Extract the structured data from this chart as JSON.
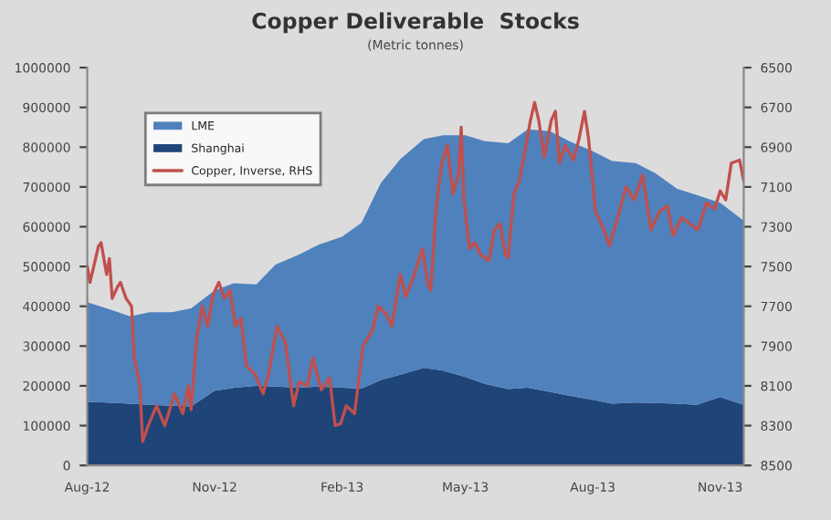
{
  "chart_data": {
    "type": "area",
    "title": "Copper Deliverable  Stocks",
    "subtitle": "(Metric tonnes)",
    "stacked": true,
    "legend": "top left",
    "grid": false,
    "x": [
      "2012-08-01",
      "2012-08-15",
      "2012-09-01",
      "2012-09-15",
      "2012-10-01",
      "2012-10-15",
      "2012-11-01",
      "2012-11-15",
      "2012-12-01",
      "2012-12-15",
      "2013-01-01",
      "2013-01-15",
      "2013-02-01",
      "2013-02-15",
      "2013-03-01",
      "2013-03-15",
      "2013-04-01",
      "2013-04-15",
      "2013-05-01",
      "2013-05-15",
      "2013-06-01",
      "2013-06-15",
      "2013-07-01",
      "2013-07-15",
      "2013-08-01",
      "2013-08-15",
      "2013-09-01",
      "2013-09-15",
      "2013-10-01",
      "2013-10-15",
      "2013-11-01",
      "2013-11-18"
    ],
    "xlim": [
      "2012-08-01",
      "2013-11-18"
    ],
    "xticks": [
      {
        "value": "2012-08-01",
        "label": "Aug-12"
      },
      {
        "value": "2012-11-01",
        "label": "Nov-12"
      },
      {
        "value": "2013-02-01",
        "label": "Feb-13"
      },
      {
        "value": "2013-05-01",
        "label": "May-13"
      },
      {
        "value": "2013-08-01",
        "label": "Aug-13"
      },
      {
        "value": "2013-11-01",
        "label": "Nov-13"
      }
    ],
    "ylim": [
      0,
      1000000
    ],
    "yticks": [
      0,
      100000,
      200000,
      300000,
      400000,
      500000,
      600000,
      700000,
      800000,
      900000,
      1000000
    ],
    "y2lim": [
      8500,
      6500
    ],
    "y2ticks": [
      6500,
      6700,
      6900,
      7100,
      7300,
      7500,
      7700,
      7900,
      8100,
      8300,
      8500
    ],
    "series": [
      {
        "name": "Shanghai",
        "color": "#1f4478",
        "values": [
          160000,
          158000,
          155000,
          152000,
          150000,
          148000,
          188000,
          195000,
          200000,
          198000,
          195000,
          198000,
          195000,
          193000,
          215000,
          228000,
          245000,
          238000,
          222000,
          205000,
          192000,
          195000,
          185000,
          175000,
          165000,
          155000,
          158000,
          157000,
          155000,
          152000,
          172000,
          152000
        ]
      },
      {
        "name": "LME",
        "color": "#4f81bd",
        "values": [
          250000,
          237000,
          220000,
          233000,
          235000,
          247000,
          252000,
          263000,
          255000,
          307000,
          335000,
          357000,
          380000,
          417000,
          495000,
          542000,
          575000,
          592000,
          608000,
          610000,
          618000,
          650000,
          655000,
          640000,
          625000,
          610000,
          602000,
          578000,
          540000,
          528000,
          488000,
          463000
        ]
      },
      {
        "name": "Copper, Inverse, RHS",
        "type": "line",
        "axis": "y2",
        "color": "#c0504d",
        "x": [
          "2012-08-01",
          "2012-08-03",
          "2012-08-09",
          "2012-08-11",
          "2012-08-15",
          "2012-08-17",
          "2012-08-19",
          "2012-08-23",
          "2012-08-25",
          "2012-08-29",
          "2012-09-02",
          "2012-09-04",
          "2012-09-08",
          "2012-09-10",
          "2012-09-14",
          "2012-09-20",
          "2012-09-26",
          "2012-10-03",
          "2012-10-09",
          "2012-10-13",
          "2012-10-15",
          "2012-10-19",
          "2012-10-23",
          "2012-10-27",
          "2012-10-31",
          "2012-11-04",
          "2012-11-08",
          "2012-11-12",
          "2012-11-16",
          "2012-11-20",
          "2012-11-24",
          "2012-11-30",
          "2012-12-06",
          "2012-12-10",
          "2012-12-16",
          "2012-12-22",
          "2012-12-28",
          "2013-01-01",
          "2013-01-07",
          "2013-01-11",
          "2013-01-17",
          "2013-01-23",
          "2013-01-27",
          "2013-01-31",
          "2013-02-04",
          "2013-02-10",
          "2013-02-16",
          "2013-02-23",
          "2013-02-27",
          "2013-03-05",
          "2013-03-09",
          "2013-03-15",
          "2013-03-19",
          "2013-03-25",
          "2013-03-31",
          "2013-04-04",
          "2013-04-06",
          "2013-04-10",
          "2013-04-14",
          "2013-04-18",
          "2013-04-22",
          "2013-04-26",
          "2013-04-28",
          "2013-04-30",
          "2013-05-04",
          "2013-05-08",
          "2013-05-12",
          "2013-05-18",
          "2013-05-22",
          "2013-05-26",
          "2013-05-30",
          "2013-06-01",
          "2013-06-05",
          "2013-06-09",
          "2013-06-13",
          "2013-06-17",
          "2013-06-20",
          "2013-06-23",
          "2013-06-27",
          "2013-07-02",
          "2013-07-05",
          "2013-07-08",
          "2013-07-12",
          "2013-07-18",
          "2013-07-22",
          "2013-07-26",
          "2013-07-29",
          "2013-08-03",
          "2013-08-09",
          "2013-08-13",
          "2013-08-19",
          "2013-08-25",
          "2013-08-31",
          "2013-09-06",
          "2013-09-12",
          "2013-09-18",
          "2013-09-24",
          "2013-09-28",
          "2013-10-04",
          "2013-10-10",
          "2013-10-16",
          "2013-10-22",
          "2013-10-28",
          "2013-11-01",
          "2013-11-05",
          "2013-11-09",
          "2013-11-15",
          "2013-11-18"
        ],
        "values": [
          7500,
          7580,
          7400,
          7380,
          7540,
          7460,
          7660,
          7600,
          7580,
          7660,
          7700,
          7960,
          8100,
          8380,
          8300,
          8200,
          8300,
          8140,
          8240,
          8100,
          8220,
          7860,
          7700,
          7800,
          7640,
          7580,
          7660,
          7620,
          7800,
          7760,
          8000,
          8040,
          8140,
          8040,
          7800,
          7880,
          8200,
          8080,
          8100,
          7960,
          8120,
          8060,
          8300,
          8290,
          8200,
          8240,
          7900,
          7820,
          7700,
          7740,
          7800,
          7540,
          7650,
          7545,
          7410,
          7590,
          7620,
          7195,
          6980,
          6890,
          7135,
          7040,
          6800,
          7165,
          7410,
          7380,
          7440,
          7470,
          7315,
          7285,
          7440,
          7455,
          7135,
          7070,
          6920,
          6765,
          6675,
          6765,
          6950,
          6765,
          6720,
          6980,
          6890,
          6965,
          6860,
          6720,
          6860,
          7225,
          7315,
          7395,
          7255,
          7100,
          7165,
          7040,
          7315,
          7225,
          7195,
          7345,
          7255,
          7285,
          7315,
          7180,
          7210,
          7120,
          7165,
          6980,
          6965,
          7070
        ]
      }
    ]
  }
}
